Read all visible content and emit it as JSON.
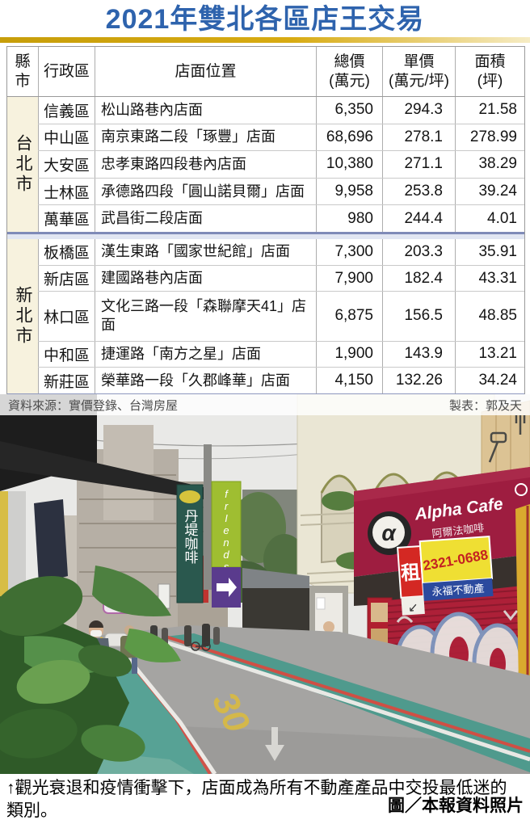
{
  "title": "2021年雙北各區店王交易",
  "table": {
    "headers": [
      {
        "line1": "縣",
        "line2": "市"
      },
      {
        "line1": "行政區",
        "line2": ""
      },
      {
        "line1": "店面位置",
        "line2": ""
      },
      {
        "line1": "總價",
        "line2": "(萬元)"
      },
      {
        "line1": "單價",
        "line2": "(萬元/坪)"
      },
      {
        "line1": "面積",
        "line2": "(坪)"
      }
    ],
    "sections": [
      {
        "city": "台北市",
        "rows": [
          {
            "district": "信義區",
            "location": "松山路巷內店面",
            "total_price": "6,350",
            "unit_price": "294.3",
            "area": "21.58"
          },
          {
            "district": "中山區",
            "location": "南京東路二段「琢豐」店面",
            "total_price": "68,696",
            "unit_price": "278.1",
            "area": "278.99"
          },
          {
            "district": "大安區",
            "location": "忠孝東路四段巷內店面",
            "total_price": "10,380",
            "unit_price": "271.1",
            "area": "38.29"
          },
          {
            "district": "士林區",
            "location": "承德路四段「圓山諾貝爾」店面",
            "total_price": "9,958",
            "unit_price": "253.8",
            "area": "39.24"
          },
          {
            "district": "萬華區",
            "location": "武昌街二段店面",
            "total_price": "980",
            "unit_price": "244.4",
            "area": "4.01"
          }
        ]
      },
      {
        "city": "新北市",
        "rows": [
          {
            "district": "板橋區",
            "location": "漢生東路「國家世紀館」店面",
            "total_price": "7,300",
            "unit_price": "203.3",
            "area": "35.91"
          },
          {
            "district": "新店區",
            "location": "建國路巷內店面",
            "total_price": "7,900",
            "unit_price": "182.4",
            "area": "43.31"
          },
          {
            "district": "林口區",
            "location": "文化三路一段「森聯摩天41」店面",
            "total_price": "6,875",
            "unit_price": "156.5",
            "area": "48.85"
          },
          {
            "district": "中和區",
            "location": "捷運路「南方之星」店面",
            "total_price": "1,900",
            "unit_price": "143.9",
            "area": "13.21"
          },
          {
            "district": "新莊區",
            "location": "榮華路一段「久郡峰華」店面",
            "total_price": "4,150",
            "unit_price": "132.26",
            "area": "34.24"
          }
        ]
      }
    ]
  },
  "source": {
    "left": "資料來源：實價登錄、台灣房屋",
    "right": "製表：郭及天"
  },
  "photo": {
    "signs": {
      "dante": "丹堤咖啡",
      "friends": "frIends",
      "alpha": "Alpha Cafe",
      "alpha_cn": "阿爾法咖啡",
      "alpha_logo": "α",
      "rent": "租",
      "phone": "2321-0688",
      "realty": "永福不動產",
      "rent_arrow": "↙",
      "speed_marking": "30"
    }
  },
  "caption": {
    "text": "↑觀光衰退和疫情衝擊下，店面成為所有不動產產品中交投最低迷的類別。",
    "credit": "圖／本報資料照片"
  },
  "colors": {
    "title_blue": "#2e63ad",
    "gold_bar": "#d0a40e",
    "city_column_bg": "#f7f2de",
    "section_divider_blue": "#7f8bb8",
    "sidewalk_teal": "#57a295",
    "alpha_sign_red": "#9e1d40",
    "shutter_red": "#ad2038",
    "rent_banner_yellow": "#efdf33",
    "realty_banner_blue": "#2b4a9e"
  }
}
